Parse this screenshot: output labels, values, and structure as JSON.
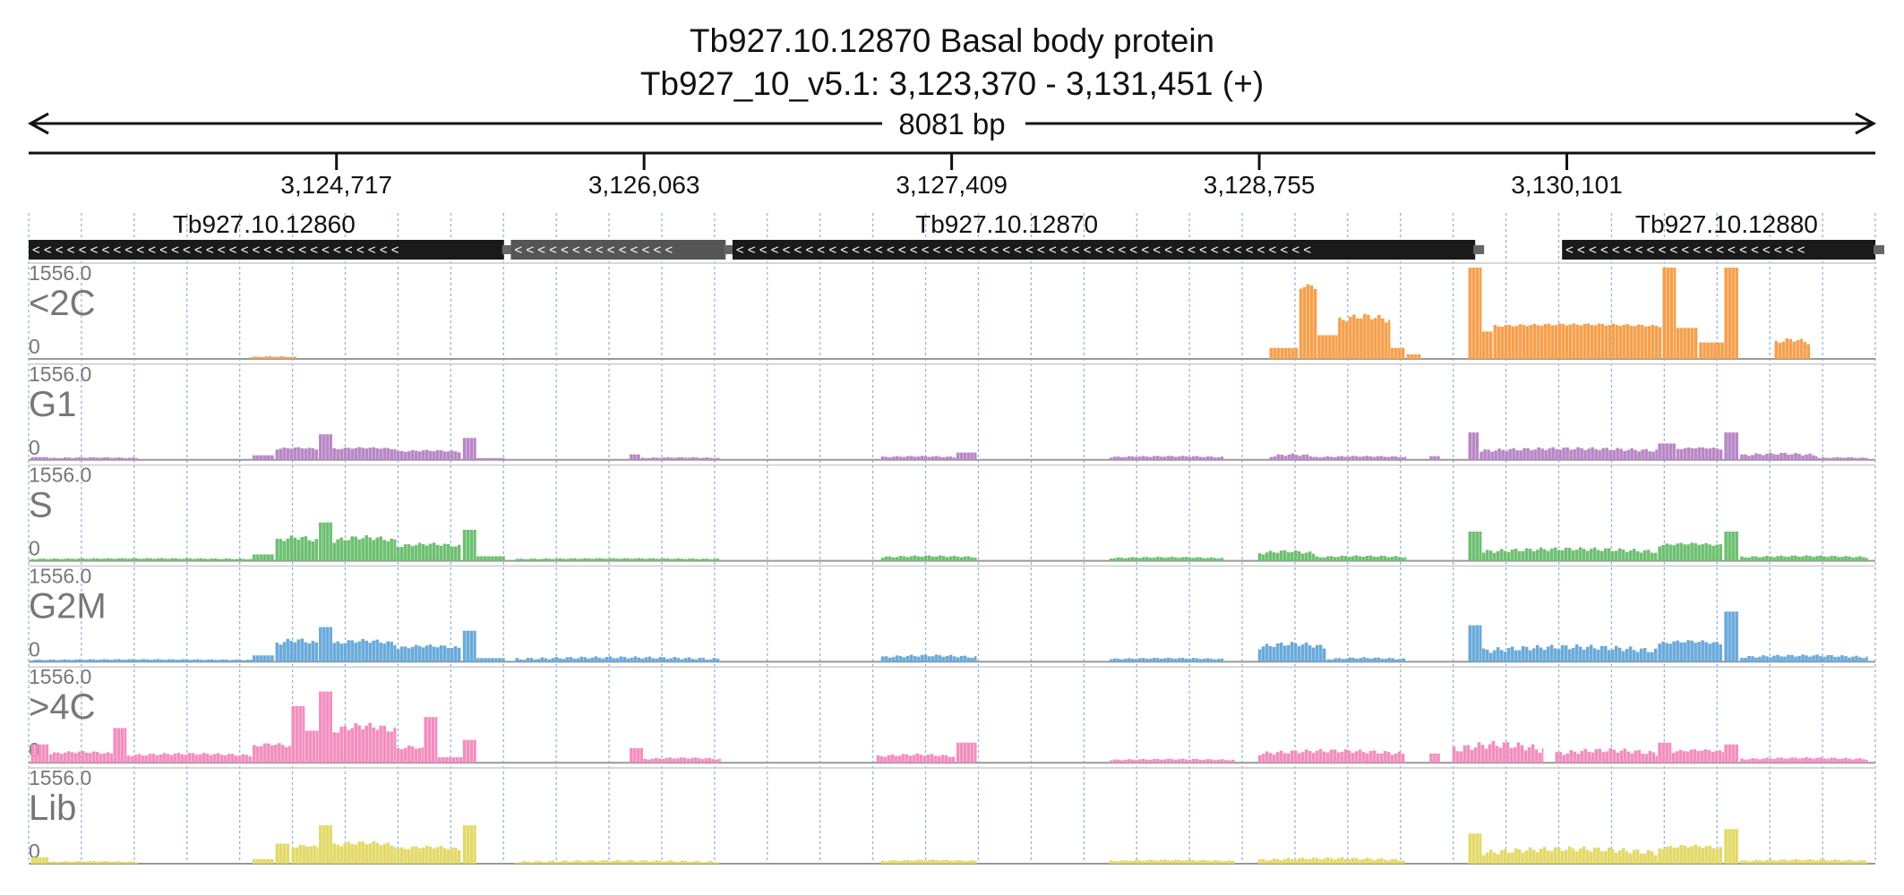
{
  "chart_data": {
    "type": "bar",
    "title": "Tb927.10.12870  Basal body protein",
    "subtitle": "Tb927_10_v5.1: 3,123,370 - 3,131,451 (+)",
    "span_label": "8081 bp",
    "xlim": [
      3123370,
      3131451
    ],
    "x_ticks": [
      3124717,
      3126063,
      3127409,
      3128755,
      3130101
    ],
    "x_tick_labels": [
      "3,124,717",
      "3,126,063",
      "3,127,409",
      "3,128,755",
      "3,130,101"
    ],
    "grid": true,
    "genes": [
      {
        "label": "Tb927.10.12860",
        "start": 3123370,
        "end": 3125450,
        "strand": "-",
        "label_pos": 3124400
      },
      {
        "label": "",
        "start": 3125480,
        "end": 3126420,
        "strand": "-",
        "style": "grey"
      },
      {
        "label": "Tb927.10.12870",
        "start": 3126450,
        "end": 3129700,
        "strand": "-",
        "label_pos": 3127650
      },
      {
        "label": "Tb927.10.12880",
        "start": 3130080,
        "end": 3131451,
        "strand": "-",
        "label_pos": 3130800
      }
    ],
    "tracks": [
      {
        "name": "<2C",
        "ymax_label": "1556.0",
        "ymin_label": "0",
        "color": "#f6a04d",
        "segments": [
          {
            "x0": 3124340,
            "x1": 3124550,
            "v": 0.02,
            "amp": 0.01
          },
          {
            "x0": 3128800,
            "x1": 3128930,
            "v": 0.12
          },
          {
            "x0": 3128930,
            "x1": 3129010,
            "v": 0.78,
            "amp": 0.04
          },
          {
            "x0": 3129010,
            "x1": 3129100,
            "v": 0.26
          },
          {
            "x0": 3129100,
            "x1": 3129330,
            "v": 0.42,
            "amp": 0.08
          },
          {
            "x0": 3129330,
            "x1": 3129400,
            "v": 0.12
          },
          {
            "x0": 3129400,
            "x1": 3129470,
            "v": 0.05
          },
          {
            "x0": 3129670,
            "x1": 3129730,
            "v": 1.0
          },
          {
            "x0": 3129730,
            "x1": 3129780,
            "v": 0.3
          },
          {
            "x0": 3129780,
            "x1": 3130520,
            "v": 0.36,
            "amp": 0.03
          },
          {
            "x0": 3130520,
            "x1": 3130580,
            "v": 1.0
          },
          {
            "x0": 3130580,
            "x1": 3130680,
            "v": 0.34
          },
          {
            "x0": 3130680,
            "x1": 3130790,
            "v": 0.18
          },
          {
            "x0": 3130790,
            "x1": 3130860,
            "v": 1.0
          },
          {
            "x0": 3131010,
            "x1": 3131170,
            "v": 0.18,
            "amp": 0.05
          }
        ]
      },
      {
        "name": "G1",
        "ymax_label": "1556.0",
        "ymin_label": "0",
        "color": "#b887c6",
        "segments": [
          {
            "x0": 3123380,
            "x1": 3123460,
            "v": 0.03
          },
          {
            "x0": 3123460,
            "x1": 3123850,
            "v": 0.02,
            "amp": 0.01
          },
          {
            "x0": 3124350,
            "x1": 3124450,
            "v": 0.05
          },
          {
            "x0": 3124450,
            "x1": 3124640,
            "v": 0.12,
            "amp": 0.02
          },
          {
            "x0": 3124640,
            "x1": 3124700,
            "v": 0.28
          },
          {
            "x0": 3124700,
            "x1": 3124980,
            "v": 0.12,
            "amp": 0.02
          },
          {
            "x0": 3124980,
            "x1": 3125270,
            "v": 0.09,
            "amp": 0.02
          },
          {
            "x0": 3125270,
            "x1": 3125330,
            "v": 0.24
          },
          {
            "x0": 3125330,
            "x1": 3125460,
            "v": 0.02
          },
          {
            "x0": 3126000,
            "x1": 3126050,
            "v": 0.06
          },
          {
            "x0": 3126050,
            "x1": 3126400,
            "v": 0.02,
            "amp": 0.01
          },
          {
            "x0": 3127100,
            "x1": 3127430,
            "v": 0.03,
            "amp": 0.015
          },
          {
            "x0": 3127430,
            "x1": 3127520,
            "v": 0.08
          },
          {
            "x0": 3128100,
            "x1": 3128600,
            "v": 0.03,
            "amp": 0.015
          },
          {
            "x0": 3128800,
            "x1": 3129000,
            "v": 0.04,
            "amp": 0.03
          },
          {
            "x0": 3129000,
            "x1": 3129400,
            "v": 0.03,
            "amp": 0.015
          },
          {
            "x0": 3129500,
            "x1": 3129550,
            "v": 0.04
          },
          {
            "x0": 3129670,
            "x1": 3129720,
            "v": 0.3
          },
          {
            "x0": 3129720,
            "x1": 3130500,
            "v": 0.1,
            "amp": 0.04
          },
          {
            "x0": 3130500,
            "x1": 3130580,
            "v": 0.18
          },
          {
            "x0": 3130580,
            "x1": 3130790,
            "v": 0.12,
            "amp": 0.02
          },
          {
            "x0": 3130790,
            "x1": 3130860,
            "v": 0.3
          },
          {
            "x0": 3130860,
            "x1": 3131200,
            "v": 0.05,
            "amp": 0.03
          },
          {
            "x0": 3131200,
            "x1": 3131420,
            "v": 0.02,
            "amp": 0.01
          }
        ]
      },
      {
        "name": "S",
        "ymax_label": "1556.0",
        "ymin_label": "0",
        "color": "#6dc071",
        "segments": [
          {
            "x0": 3123380,
            "x1": 3124350,
            "v": 0.02,
            "amp": 0.01
          },
          {
            "x0": 3124350,
            "x1": 3124450,
            "v": 0.07
          },
          {
            "x0": 3124450,
            "x1": 3124640,
            "v": 0.22,
            "amp": 0.06
          },
          {
            "x0": 3124640,
            "x1": 3124700,
            "v": 0.42
          },
          {
            "x0": 3124700,
            "x1": 3124980,
            "v": 0.22,
            "amp": 0.06
          },
          {
            "x0": 3124980,
            "x1": 3125270,
            "v": 0.16,
            "amp": 0.04
          },
          {
            "x0": 3125270,
            "x1": 3125330,
            "v": 0.34
          },
          {
            "x0": 3125330,
            "x1": 3125460,
            "v": 0.05
          },
          {
            "x0": 3125500,
            "x1": 3126400,
            "v": 0.02,
            "amp": 0.01
          },
          {
            "x0": 3127100,
            "x1": 3127520,
            "v": 0.04,
            "amp": 0.02
          },
          {
            "x0": 3128100,
            "x1": 3128600,
            "v": 0.03,
            "amp": 0.015
          },
          {
            "x0": 3128750,
            "x1": 3129000,
            "v": 0.08,
            "amp": 0.04
          },
          {
            "x0": 3129000,
            "x1": 3129400,
            "v": 0.04,
            "amp": 0.02
          },
          {
            "x0": 3129670,
            "x1": 3129730,
            "v": 0.32
          },
          {
            "x0": 3129730,
            "x1": 3130500,
            "v": 0.1,
            "amp": 0.05
          },
          {
            "x0": 3130500,
            "x1": 3130790,
            "v": 0.17,
            "amp": 0.03
          },
          {
            "x0": 3130790,
            "x1": 3130860,
            "v": 0.32
          },
          {
            "x0": 3130860,
            "x1": 3131420,
            "v": 0.04,
            "amp": 0.02
          }
        ]
      },
      {
        "name": "G2M",
        "ymax_label": "1556.0",
        "ymin_label": "0",
        "color": "#69aada",
        "segments": [
          {
            "x0": 3123380,
            "x1": 3124350,
            "v": 0.02,
            "amp": 0.01
          },
          {
            "x0": 3124350,
            "x1": 3124450,
            "v": 0.07
          },
          {
            "x0": 3124450,
            "x1": 3124640,
            "v": 0.2,
            "amp": 0.06
          },
          {
            "x0": 3124640,
            "x1": 3124700,
            "v": 0.38
          },
          {
            "x0": 3124700,
            "x1": 3124980,
            "v": 0.2,
            "amp": 0.05
          },
          {
            "x0": 3124980,
            "x1": 3125270,
            "v": 0.15,
            "amp": 0.04
          },
          {
            "x0": 3125270,
            "x1": 3125330,
            "v": 0.34
          },
          {
            "x0": 3125330,
            "x1": 3125460,
            "v": 0.04
          },
          {
            "x0": 3125500,
            "x1": 3126400,
            "v": 0.03,
            "amp": 0.03
          },
          {
            "x0": 3127100,
            "x1": 3127520,
            "v": 0.05,
            "amp": 0.03
          },
          {
            "x0": 3128100,
            "x1": 3128600,
            "v": 0.03,
            "amp": 0.015
          },
          {
            "x0": 3128750,
            "x1": 3129050,
            "v": 0.16,
            "amp": 0.06
          },
          {
            "x0": 3129050,
            "x1": 3129400,
            "v": 0.03,
            "amp": 0.02
          },
          {
            "x0": 3129670,
            "x1": 3129730,
            "v": 0.4
          },
          {
            "x0": 3129730,
            "x1": 3130500,
            "v": 0.12,
            "amp": 0.07
          },
          {
            "x0": 3130500,
            "x1": 3130790,
            "v": 0.2,
            "amp": 0.04
          },
          {
            "x0": 3130790,
            "x1": 3130860,
            "v": 0.55
          },
          {
            "x0": 3130860,
            "x1": 3131420,
            "v": 0.05,
            "amp": 0.03
          }
        ]
      },
      {
        "name": ">4C",
        "ymax_label": "1556.0",
        "ymin_label": "0",
        "color": "#f38ebf",
        "segments": [
          {
            "x0": 3123380,
            "x1": 3123460,
            "v": 0.2
          },
          {
            "x0": 3123460,
            "x1": 3123740,
            "v": 0.1,
            "amp": 0.03
          },
          {
            "x0": 3123740,
            "x1": 3123800,
            "v": 0.38
          },
          {
            "x0": 3123800,
            "x1": 3124350,
            "v": 0.08,
            "amp": 0.03
          },
          {
            "x0": 3124350,
            "x1": 3124520,
            "v": 0.18,
            "amp": 0.04
          },
          {
            "x0": 3124520,
            "x1": 3124580,
            "v": 0.62
          },
          {
            "x0": 3124580,
            "x1": 3124640,
            "v": 0.35
          },
          {
            "x0": 3124640,
            "x1": 3124700,
            "v": 0.78
          },
          {
            "x0": 3124700,
            "x1": 3124980,
            "v": 0.35,
            "amp": 0.09
          },
          {
            "x0": 3124980,
            "x1": 3125100,
            "v": 0.15,
            "amp": 0.04
          },
          {
            "x0": 3125100,
            "x1": 3125160,
            "v": 0.5
          },
          {
            "x0": 3125160,
            "x1": 3125270,
            "v": 0.06
          },
          {
            "x0": 3125270,
            "x1": 3125330,
            "v": 0.25
          },
          {
            "x0": 3126000,
            "x1": 3126060,
            "v": 0.16
          },
          {
            "x0": 3126060,
            "x1": 3126400,
            "v": 0.04,
            "amp": 0.02
          },
          {
            "x0": 3127080,
            "x1": 3127430,
            "v": 0.07,
            "amp": 0.03
          },
          {
            "x0": 3127430,
            "x1": 3127520,
            "v": 0.22
          },
          {
            "x0": 3128100,
            "x1": 3128650,
            "v": 0.03,
            "amp": 0.015
          },
          {
            "x0": 3128750,
            "x1": 3129400,
            "v": 0.1,
            "amp": 0.05
          },
          {
            "x0": 3129500,
            "x1": 3129550,
            "v": 0.1
          },
          {
            "x0": 3129600,
            "x1": 3130000,
            "v": 0.14,
            "amp": 0.1
          },
          {
            "x0": 3130050,
            "x1": 3130500,
            "v": 0.1,
            "amp": 0.06
          },
          {
            "x0": 3130500,
            "x1": 3130560,
            "v": 0.22
          },
          {
            "x0": 3130560,
            "x1": 3130790,
            "v": 0.12,
            "amp": 0.03
          },
          {
            "x0": 3130790,
            "x1": 3130860,
            "v": 0.2
          },
          {
            "x0": 3130860,
            "x1": 3131420,
            "v": 0.04,
            "amp": 0.02
          }
        ]
      },
      {
        "name": "Lib",
        "ymax_label": "1556.0",
        "ymin_label": "0",
        "color": "#e3d968",
        "segments": [
          {
            "x0": 3123380,
            "x1": 3123460,
            "v": 0.07
          },
          {
            "x0": 3123460,
            "x1": 3123850,
            "v": 0.02,
            "amp": 0.01
          },
          {
            "x0": 3124350,
            "x1": 3124450,
            "v": 0.05
          },
          {
            "x0": 3124450,
            "x1": 3124520,
            "v": 0.22
          },
          {
            "x0": 3124520,
            "x1": 3124640,
            "v": 0.18,
            "amp": 0.03
          },
          {
            "x0": 3124640,
            "x1": 3124700,
            "v": 0.42
          },
          {
            "x0": 3124700,
            "x1": 3124980,
            "v": 0.2,
            "amp": 0.05
          },
          {
            "x0": 3124980,
            "x1": 3125270,
            "v": 0.16,
            "amp": 0.04
          },
          {
            "x0": 3125270,
            "x1": 3125330,
            "v": 0.42
          },
          {
            "x0": 3125500,
            "x1": 3126400,
            "v": 0.02,
            "amp": 0.02
          },
          {
            "x0": 3127100,
            "x1": 3127520,
            "v": 0.03,
            "amp": 0.015
          },
          {
            "x0": 3128100,
            "x1": 3128650,
            "v": 0.03,
            "amp": 0.015
          },
          {
            "x0": 3128750,
            "x1": 3129400,
            "v": 0.04,
            "amp": 0.03
          },
          {
            "x0": 3129670,
            "x1": 3129730,
            "v": 0.33
          },
          {
            "x0": 3129730,
            "x1": 3130500,
            "v": 0.12,
            "amp": 0.07
          },
          {
            "x0": 3130500,
            "x1": 3130790,
            "v": 0.17,
            "amp": 0.04
          },
          {
            "x0": 3130790,
            "x1": 3130860,
            "v": 0.38
          },
          {
            "x0": 3130860,
            "x1": 3131420,
            "v": 0.03,
            "amp": 0.02
          }
        ]
      }
    ]
  }
}
